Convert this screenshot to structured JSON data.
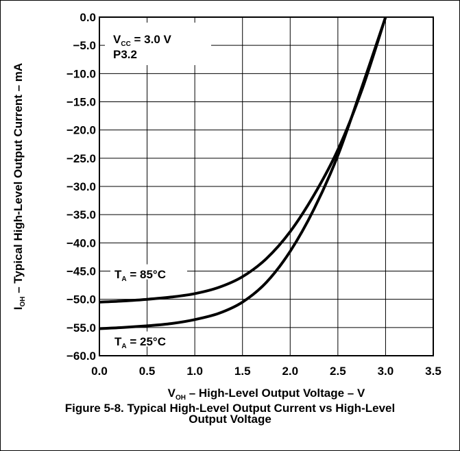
{
  "chart_data": {
    "type": "line",
    "title": "",
    "xlabel": {
      "main": "V",
      "sub": "OH",
      "rest": " – High-Level Output Voltage – V"
    },
    "ylabel": {
      "main": "I",
      "sub": "OH",
      "rest": " – Typical High-Level Output Current – mA"
    },
    "xlim": [
      0,
      3.5
    ],
    "ylim": [
      -60,
      0
    ],
    "x_ticks": [
      "0.0",
      "0.5",
      "1.0",
      "1.5",
      "2.0",
      "2.5",
      "3.0",
      "3.5"
    ],
    "y_ticks": [
      "0.0",
      "−5.0",
      "−10.0",
      "−15.0",
      "−20.0",
      "−25.0",
      "−30.0",
      "−35.0",
      "−40.0",
      "−45.0",
      "−50.0",
      "−55.0",
      "−60.0"
    ],
    "grid": true,
    "annotation": {
      "vcc_main": "V",
      "vcc_sub": "CC",
      "vcc_rest": " = 3.0 V",
      "pin": "P3.2"
    },
    "series": [
      {
        "name": "T_A = 85°C",
        "label_main": "T",
        "label_sub": "A",
        "label_rest": " = 85°C",
        "points": [
          [
            0.0,
            -50.5
          ],
          [
            0.25,
            -50.3
          ],
          [
            0.5,
            -50.0
          ],
          [
            0.75,
            -49.6
          ],
          [
            1.0,
            -49.0
          ],
          [
            1.25,
            -47.9
          ],
          [
            1.5,
            -46.0
          ],
          [
            1.75,
            -42.8
          ],
          [
            2.0,
            -38.0
          ],
          [
            2.25,
            -31.5
          ],
          [
            2.5,
            -23.5
          ],
          [
            2.75,
            -13.0
          ],
          [
            3.0,
            0.0
          ]
        ]
      },
      {
        "name": "T_A = 25°C",
        "label_main": "T",
        "label_sub": "A",
        "label_rest": " = 25°C",
        "points": [
          [
            0.0,
            -55.2
          ],
          [
            0.25,
            -55.0
          ],
          [
            0.5,
            -54.7
          ],
          [
            0.75,
            -54.3
          ],
          [
            1.0,
            -53.6
          ],
          [
            1.25,
            -52.5
          ],
          [
            1.5,
            -50.5
          ],
          [
            1.75,
            -47.0
          ],
          [
            2.0,
            -41.5
          ],
          [
            2.25,
            -34.0
          ],
          [
            2.5,
            -24.5
          ],
          [
            2.75,
            -12.5
          ],
          [
            3.0,
            0.0
          ]
        ]
      }
    ]
  },
  "caption": {
    "line1": "Figure 5-8. Typical High-Level Output Current vs High-Level",
    "line2": "Output Voltage"
  }
}
